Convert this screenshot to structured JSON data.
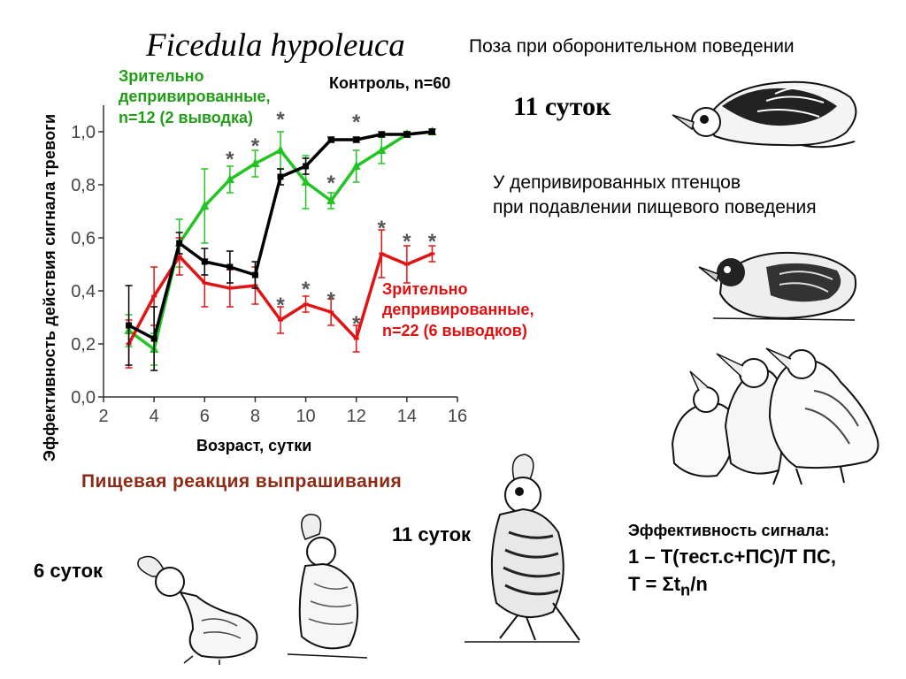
{
  "species": "Ficedula hypoleuca",
  "pose_title": "Поза при оборонительном поведении",
  "pose_days": "11 суток",
  "deprived_note": [
    "У депривированных птенцов",
    "при  подавлении пищевого поведения"
  ],
  "begging_title": "Пищевая реакция выпрашивания",
  "label_6_days": "6 суток",
  "label_11_days": "11 суток",
  "formula": {
    "title": "Эффективность сигнала:",
    "line1": "1 – Т(тест.с+ПС)/Т ПС,",
    "line2_prefix": "Т = Σt",
    "line2_sub": "n",
    "line2_suffix": "/n"
  },
  "chart_data": {
    "type": "line",
    "ylabel": "Эффективность действия сигнала тревоги",
    "xlabel": "Возраст, сутки",
    "xlim": [
      2,
      16
    ],
    "ylim": [
      0,
      1.1
    ],
    "xticks": [
      2,
      4,
      6,
      8,
      10,
      12,
      14,
      16
    ],
    "yticks": [
      0.0,
      0.2,
      0.4,
      0.6,
      0.8,
      1.0
    ],
    "ytick_labels": [
      "0,0",
      "0,2",
      "0,4",
      "0,6",
      "0,8",
      "1,0"
    ],
    "grid": false,
    "series": [
      {
        "name": "Контроль, n=60",
        "label_lines": [
          "Контроль, n=60"
        ],
        "color": "#000000",
        "marker": "square",
        "x": [
          3,
          4,
          5,
          6,
          7,
          8,
          9,
          10,
          11,
          12,
          13,
          14,
          15
        ],
        "y": [
          0.27,
          0.22,
          0.58,
          0.51,
          0.49,
          0.46,
          0.83,
          0.87,
          0.97,
          0.97,
          0.99,
          0.99,
          1.0
        ],
        "err": [
          0.15,
          0.12,
          0.04,
          0.05,
          0.06,
          0.05,
          0.03,
          0.03,
          0.01,
          0.01,
          0.01,
          0.01,
          0.01
        ]
      },
      {
        "name": "Зрительно депривированные, n=12 (2 выводка)",
        "label_lines": [
          "Зрительно",
          "депривированные,",
          "n=12 (2 выводка)"
        ],
        "color": "#22c422",
        "marker": "triangle",
        "x": [
          3,
          4,
          5,
          6,
          7,
          8,
          9,
          10,
          11,
          12,
          13,
          14,
          15
        ],
        "y": [
          0.25,
          0.18,
          0.58,
          0.72,
          0.82,
          0.88,
          0.93,
          0.81,
          0.74,
          0.87,
          0.93,
          0.99,
          1.0
        ],
        "err": [
          0.06,
          0.06,
          0.09,
          0.14,
          0.05,
          0.05,
          0.07,
          0.1,
          0.03,
          0.06,
          0.05,
          0.01,
          0.01
        ]
      },
      {
        "name": "Зрительно депривированные, n=22 (6 выводков)",
        "label_lines": [
          "Зрительно",
          "депривированные,",
          "n=22 (6 выводков)"
        ],
        "color": "#e01414",
        "marker": "dash",
        "x": [
          3,
          4,
          5,
          6,
          7,
          8,
          9,
          10,
          11,
          12,
          13,
          14,
          15
        ],
        "y": [
          0.2,
          0.38,
          0.53,
          0.43,
          0.41,
          0.42,
          0.29,
          0.35,
          0.32,
          0.22,
          0.54,
          0.5,
          0.54
        ],
        "err": [
          0.09,
          0.11,
          0.07,
          0.09,
          0.07,
          0.07,
          0.05,
          0.03,
          0.05,
          0.05,
          0.09,
          0.07,
          0.03
        ]
      }
    ],
    "annotations": [
      {
        "text": "*",
        "x": 7.0,
        "y": 0.91
      },
      {
        "text": "*",
        "x": 8.0,
        "y": 0.96
      },
      {
        "text": "*",
        "x": 9.0,
        "y": 1.06
      },
      {
        "text": "*",
        "x": 11.0,
        "y": 0.82
      },
      {
        "text": "*",
        "x": 12.0,
        "y": 1.05
      },
      {
        "text": "*",
        "x": 9.0,
        "y": 0.36
      },
      {
        "text": "*",
        "x": 10.0,
        "y": 0.42
      },
      {
        "text": "*",
        "x": 11.0,
        "y": 0.38
      },
      {
        "text": "*",
        "x": 12.0,
        "y": 0.29
      },
      {
        "text": "*",
        "x": 13.0,
        "y": 0.65
      },
      {
        "text": "*",
        "x": 14.0,
        "y": 0.6
      },
      {
        "text": "*",
        "x": 15.0,
        "y": 0.6
      }
    ]
  }
}
